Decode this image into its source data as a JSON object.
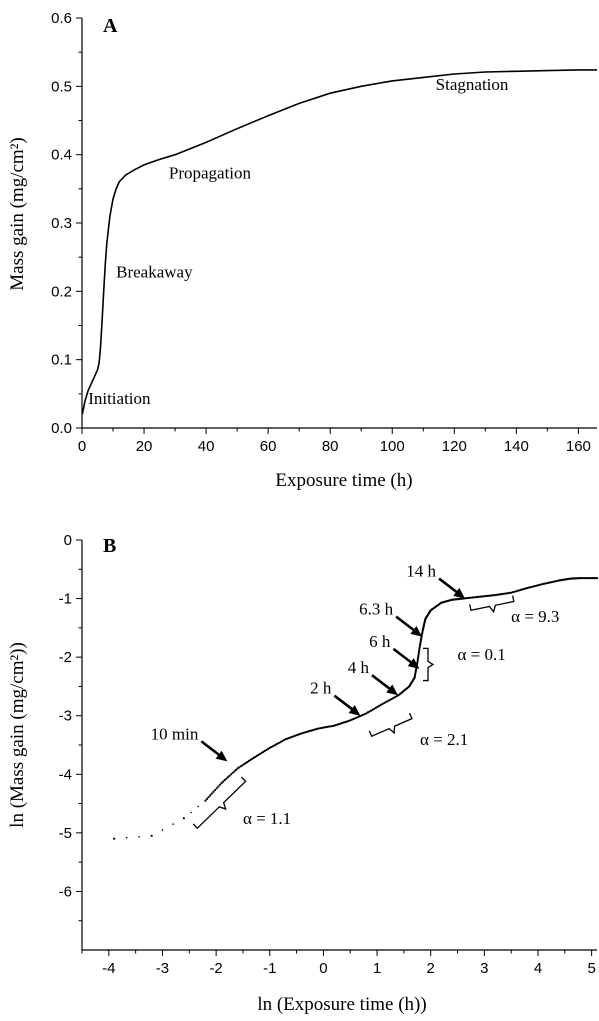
{
  "chart_data": [
    {
      "panel": "A",
      "type": "line",
      "xlabel": "Exposure time (h)",
      "ylabel": "Mass gain (mg/cm²)",
      "xlim": [
        0,
        166
      ],
      "ylim": [
        0.0,
        0.6
      ],
      "xticks": [
        0,
        20,
        40,
        60,
        80,
        100,
        120,
        140,
        160
      ],
      "yticks": [
        0.0,
        0.1,
        0.2,
        0.3,
        0.4,
        0.5,
        0.6
      ],
      "xtick_labels": [
        "0",
        "20",
        "40",
        "60",
        "80",
        "100",
        "120",
        "140",
        "160"
      ],
      "ytick_labels": [
        "0.0",
        "0.1",
        "0.2",
        "0.3",
        "0.4",
        "0.5",
        "0.6"
      ],
      "series": [
        {
          "x": [
            0.1,
            1,
            2,
            3,
            4,
            5,
            5.5,
            6,
            6.5,
            7,
            7.5,
            8,
            9,
            10,
            11,
            12,
            14,
            17,
            20,
            25,
            30,
            40,
            50,
            60,
            70,
            80,
            90,
            100,
            110,
            120,
            130,
            140,
            150,
            160,
            166
          ],
          "y": [
            0.02,
            0.04,
            0.055,
            0.065,
            0.075,
            0.085,
            0.095,
            0.12,
            0.16,
            0.2,
            0.24,
            0.27,
            0.31,
            0.335,
            0.35,
            0.36,
            0.37,
            0.378,
            0.385,
            0.393,
            0.4,
            0.418,
            0.438,
            0.457,
            0.475,
            0.49,
            0.5,
            0.508,
            0.513,
            0.518,
            0.521,
            0.522,
            0.523,
            0.524,
            0.524
          ]
        }
      ],
      "annotations": [
        {
          "text": "Initiation",
          "x": 2,
          "y": 0.035
        },
        {
          "text": "Breakaway",
          "x": 11,
          "y": 0.22
        },
        {
          "text": "Propagation",
          "x": 28,
          "y": 0.365
        },
        {
          "text": "Stagnation",
          "x": 114,
          "y": 0.495
        }
      ],
      "grid": false
    },
    {
      "panel": "B",
      "type": "scatter",
      "xlabel": "ln (Exposure time (h))",
      "ylabel": "ln (Mass gain (mg/cm²))",
      "xlim": [
        -4.5,
        5.1
      ],
      "ylim": [
        -7,
        0
      ],
      "xticks": [
        -4,
        -3,
        -2,
        -1,
        0,
        1,
        2,
        3,
        4,
        5
      ],
      "yticks": [
        0,
        -1,
        -2,
        -3,
        -4,
        -5,
        -6
      ],
      "xtick_labels": [
        "-4",
        "-3",
        "-2",
        "-1",
        "0",
        "1",
        "2",
        "3",
        "4",
        "5"
      ],
      "ytick_labels": [
        "0",
        "-1",
        "-2",
        "-3",
        "-4",
        "-5",
        "-6"
      ],
      "series": [
        {
          "x": [
            -3.9,
            -3.2,
            -2.6,
            -2.2,
            -1.9,
            -1.6,
            -1.3,
            -1.0,
            -0.7,
            -0.4,
            -0.1,
            0.2,
            0.5,
            0.8,
            1.1,
            1.4,
            1.6,
            1.7,
            1.75,
            1.8,
            1.85,
            1.9,
            2.0,
            2.2,
            2.4,
            2.6,
            2.9,
            3.2,
            3.5,
            3.8,
            4.1,
            4.4,
            4.6,
            4.8,
            5.1
          ],
          "y": [
            -5.1,
            -5.05,
            -4.75,
            -4.45,
            -4.15,
            -3.9,
            -3.72,
            -3.55,
            -3.4,
            -3.3,
            -3.22,
            -3.17,
            -3.08,
            -2.96,
            -2.8,
            -2.65,
            -2.5,
            -2.35,
            -2.1,
            -1.8,
            -1.55,
            -1.35,
            -1.2,
            -1.07,
            -1.02,
            -1.0,
            -0.97,
            -0.94,
            -0.9,
            -0.82,
            -0.75,
            -0.69,
            -0.66,
            -0.65,
            -0.65
          ]
        }
      ],
      "time_markers": [
        {
          "text": "10 min",
          "x": -1.79,
          "y": -3.78
        },
        {
          "text": "2 h",
          "x": 0.69,
          "y": -3.0
        },
        {
          "text": "4 h",
          "x": 1.39,
          "y": -2.65
        },
        {
          "text": "6 h",
          "x": 1.79,
          "y": -2.2
        },
        {
          "text": "6.3 h",
          "x": 1.84,
          "y": -1.65
        },
        {
          "text": "14 h",
          "x": 2.64,
          "y": -1.0
        }
      ],
      "slopes": [
        {
          "text": "α = 1.1",
          "x": -1.5,
          "y": -4.85
        },
        {
          "text": "α = 2.1",
          "x": 1.8,
          "y": -3.5
        },
        {
          "text": "α = 0.1",
          "x": 2.5,
          "y": -2.05
        },
        {
          "text": "α = 9.3",
          "x": 3.5,
          "y": -1.4
        }
      ],
      "grid": false
    }
  ]
}
